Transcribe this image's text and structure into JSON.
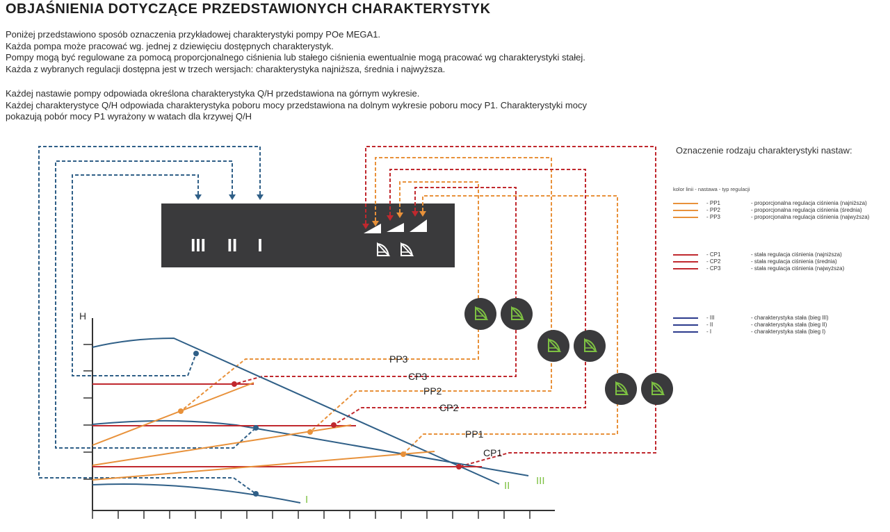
{
  "title": "OBJAŚNIENIA DOTYCZĄCE PRZEDSTAWIONYCH  CHARAKTERYSTYK",
  "paragraph1": [
    "Poniżej przedstawiono sposób oznaczenia przykładowej charakterystyki pompy POe MEGA1.",
    "Każda pompa może pracować wg. jednej z dziewięciu dostępnych charakterystyk.",
    "Pompy mogą być regulowane za pomocą proporcjonalnego ciśnienia lub stałego ciśnienia ewentualnie mogą pracować wg charakterystyki stałej.",
    "Każda z wybranych regulacji dostępna jest w trzech wersjach: charakterystyka najniższa, średnia i najwyższa."
  ],
  "paragraph2": [
    "Każdej nastawie pompy odpowiada określona charakterystyka Q/H przedstawiona na górnym wykresie.",
    "Każdej charakterystyce Q/H odpowiada charakterystyka poboru mocy przedstawiona na dolnym wykresie poboru mocy P1. Charakterystyki mocy",
    "pokazują pobór mocy P1 wyrażony w watach dla krzywej Q/H"
  ],
  "panel": {
    "speed_labels": [
      "III",
      "II",
      "I"
    ]
  },
  "chart": {
    "y_axis_label": "H",
    "curve_labels": [
      {
        "key": "PP3",
        "text": "PP3"
      },
      {
        "key": "CP3",
        "text": "CP3"
      },
      {
        "key": "PP2",
        "text": "PP2"
      },
      {
        "key": "CP2",
        "text": "CP2"
      },
      {
        "key": "PP1",
        "text": "PP1"
      },
      {
        "key": "CP1",
        "text": "CP1"
      }
    ],
    "speed_curve_labels": [
      "III",
      "II",
      "I"
    ]
  },
  "legend": {
    "title": "Oznaczenie rodzaju charakterystyki nastaw:",
    "header": "kolor linii  -  nastawa     -  typ regulacji",
    "groups": [
      {
        "color": "#e8913a",
        "rows": [
          {
            "code": "- PP1",
            "desc": "- proporcjonalna regulacja ciśnienia (najniższa)"
          },
          {
            "code": "- PP2",
            "desc": "- proporcjonalna regulacja ciśnienia (średnia)"
          },
          {
            "code": "- PP3",
            "desc": "- proporcjonalna regulacja ciśnienia (najwyższa)"
          }
        ]
      },
      {
        "color": "#c0282e",
        "rows": [
          {
            "code": "- CP1",
            "desc": "- stała regulacja ciśnienia (najniższa)"
          },
          {
            "code": "- CP2",
            "desc": "- stała regulacja ciśnienia (średnia)"
          },
          {
            "code": "- CP3",
            "desc": "- stała regulacja ciśnienia (najwyższa)"
          }
        ]
      },
      {
        "color": "#2b3a8c",
        "rows": [
          {
            "code": "- III",
            "desc": "- charakterystyka stała (bieg III)"
          },
          {
            "code": "- II",
            "desc": "- charakterystyka stała (bieg II)"
          },
          {
            "code": "- I",
            "desc": "- charakterystyka stała (bieg I)"
          }
        ]
      }
    ]
  },
  "colors": {
    "orange": "#e8913a",
    "red": "#c0282e",
    "blue": "#2f5f87",
    "green": "#7dc142",
    "panel": "#3a3a3c"
  }
}
